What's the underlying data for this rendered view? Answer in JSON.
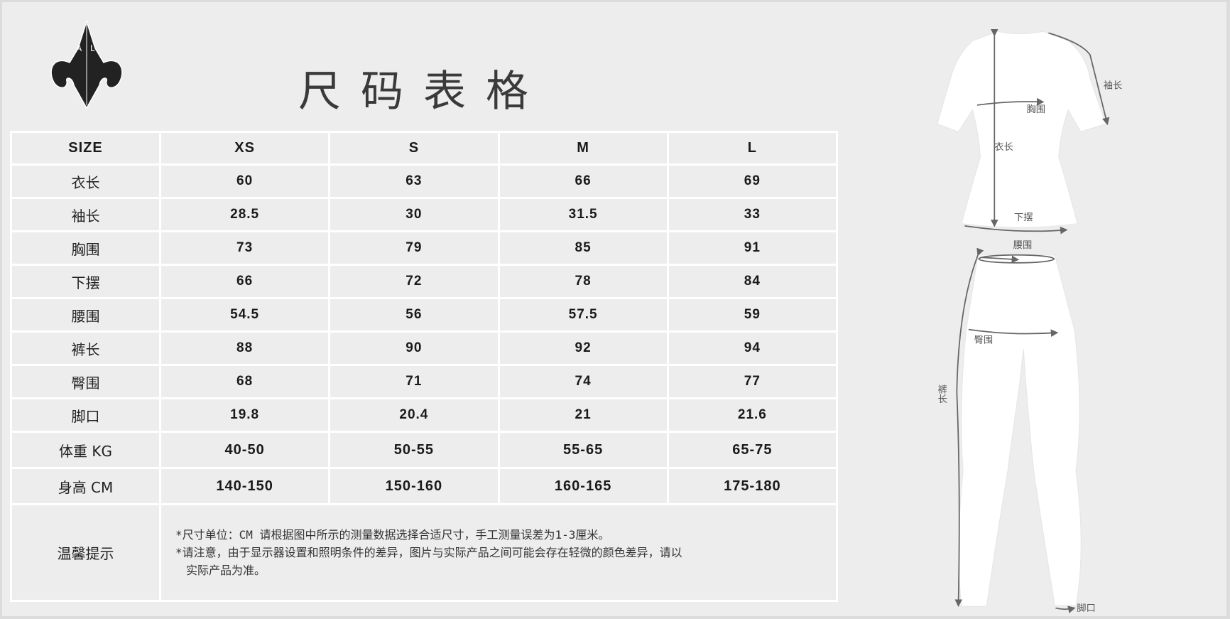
{
  "logo": {
    "letters": "A L"
  },
  "title": "尺码表格",
  "table": {
    "header": [
      "SIZE",
      "XS",
      "S",
      "M",
      "L"
    ],
    "rows": [
      {
        "label": "衣长",
        "values": [
          "60",
          "63",
          "66",
          "69"
        ]
      },
      {
        "label": "袖长",
        "values": [
          "28.5",
          "30",
          "31.5",
          "33"
        ]
      },
      {
        "label": "胸围",
        "values": [
          "73",
          "79",
          "85",
          "91"
        ]
      },
      {
        "label": "下摆",
        "values": [
          "66",
          "72",
          "78",
          "84"
        ]
      },
      {
        "label": "腰围",
        "values": [
          "54.5",
          "56",
          "57.5",
          "59"
        ]
      },
      {
        "label": "裤长",
        "values": [
          "88",
          "90",
          "92",
          "94"
        ]
      },
      {
        "label": "臀围",
        "values": [
          "68",
          "71",
          "74",
          "77"
        ]
      },
      {
        "label": "脚口",
        "values": [
          "19.8",
          "20.4",
          "21",
          "21.6"
        ]
      },
      {
        "label": "体重 KG",
        "values": [
          "40-50",
          "50-55",
          "55-65",
          "65-75"
        ]
      },
      {
        "label": "身高 CM",
        "values": [
          "140-150",
          "150-160",
          "160-165",
          "175-180"
        ]
      }
    ],
    "notes_label": "温馨提示",
    "notes": [
      "*尺寸单位：CM 请根据图中所示的测量数据选择合适尺寸，手工测量误差为1-3厘米。",
      "*请注意，由于显示器设置和照明条件的差异，图片与实际产品之间可能会存在轻微的颜色差异，请以",
      "实际产品为准。"
    ]
  },
  "figure": {
    "labels": {
      "sleeve": "袖长",
      "chest": "胸围",
      "length": "衣长",
      "hem": "下摆",
      "waist": "腰围",
      "hip": "臀围",
      "pants_length": "裤长",
      "ankle": "脚口"
    }
  }
}
